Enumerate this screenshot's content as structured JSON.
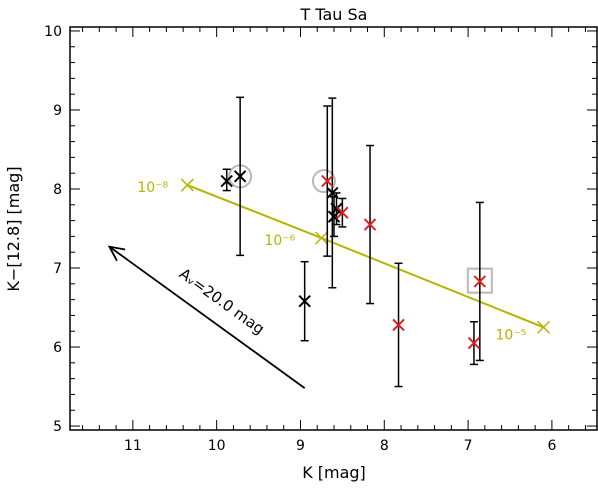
{
  "chart_data": {
    "type": "scatter",
    "title": "T Tau Sa",
    "xlabel": "K [mag]",
    "ylabel": "K−[12.8]  [mag]",
    "xlim": [
      11.75,
      5.45
    ],
    "ylim": [
      4.95,
      10.05
    ],
    "x_ticks": [
      11,
      10,
      9,
      8,
      7,
      6
    ],
    "y_ticks": [
      5,
      6,
      7,
      8,
      9,
      10
    ],
    "grid": false,
    "series": [
      {
        "color": "#000000",
        "marker": "x",
        "points": [
          {
            "x": 9.88,
            "y": 8.1,
            "yerr_low": 0.12,
            "yerr_high": 0.15
          },
          {
            "x": 9.72,
            "y": 8.16,
            "yerr_low": 1.0,
            "yerr_high": 1.0
          },
          {
            "x": 8.95,
            "y": 6.58,
            "yerr_low": 0.5,
            "yerr_high": 0.5
          },
          {
            "x": 8.62,
            "y": 7.95,
            "yerr_low": 1.2,
            "yerr_high": 1.2
          },
          {
            "x": 8.6,
            "y": 7.65,
            "yerr_low": 0.25,
            "yerr_high": 0.25
          },
          {
            "x": 8.57,
            "y": 7.75,
            "yerr_low": 0.2,
            "yerr_high": 0.2
          }
        ]
      },
      {
        "color": "#e02020",
        "marker": "x",
        "points": [
          {
            "x": 8.68,
            "y": 8.1,
            "yerr_low": 0.95,
            "yerr_high": 0.95
          },
          {
            "x": 8.5,
            "y": 7.7,
            "yerr_low": 0.18,
            "yerr_high": 0.18
          },
          {
            "x": 8.17,
            "y": 7.55,
            "yerr_low": 1.0,
            "yerr_high": 1.0
          },
          {
            "x": 7.83,
            "y": 6.28,
            "yerr_low": 0.78,
            "yerr_high": 0.78
          },
          {
            "x": 6.93,
            "y": 6.05,
            "yerr_low": 0.27,
            "yerr_high": 0.27
          },
          {
            "x": 6.86,
            "y": 6.83,
            "yerr_low": 1.0,
            "yerr_high": 1.0
          }
        ]
      }
    ],
    "model_line": {
      "color": "#b5b500",
      "points": [
        {
          "x": 10.35,
          "y": 8.05,
          "label": "10⁻⁸"
        },
        {
          "x": 8.75,
          "y": 7.38,
          "label": "10⁻⁶"
        },
        {
          "x": 6.1,
          "y": 6.25,
          "label": "10⁻⁵"
        }
      ]
    },
    "highlight_circles": [
      {
        "x": 9.72,
        "y": 8.16
      },
      {
        "x": 8.72,
        "y": 8.1
      }
    ],
    "highlight_squares": [
      {
        "x": 6.86,
        "y": 6.84
      }
    ],
    "reddening_vector": {
      "label": "Aᵥ=20.0 mag",
      "from": {
        "x": 8.95,
        "y": 5.48
      },
      "to": {
        "x": 11.28,
        "y": 7.27
      }
    }
  }
}
